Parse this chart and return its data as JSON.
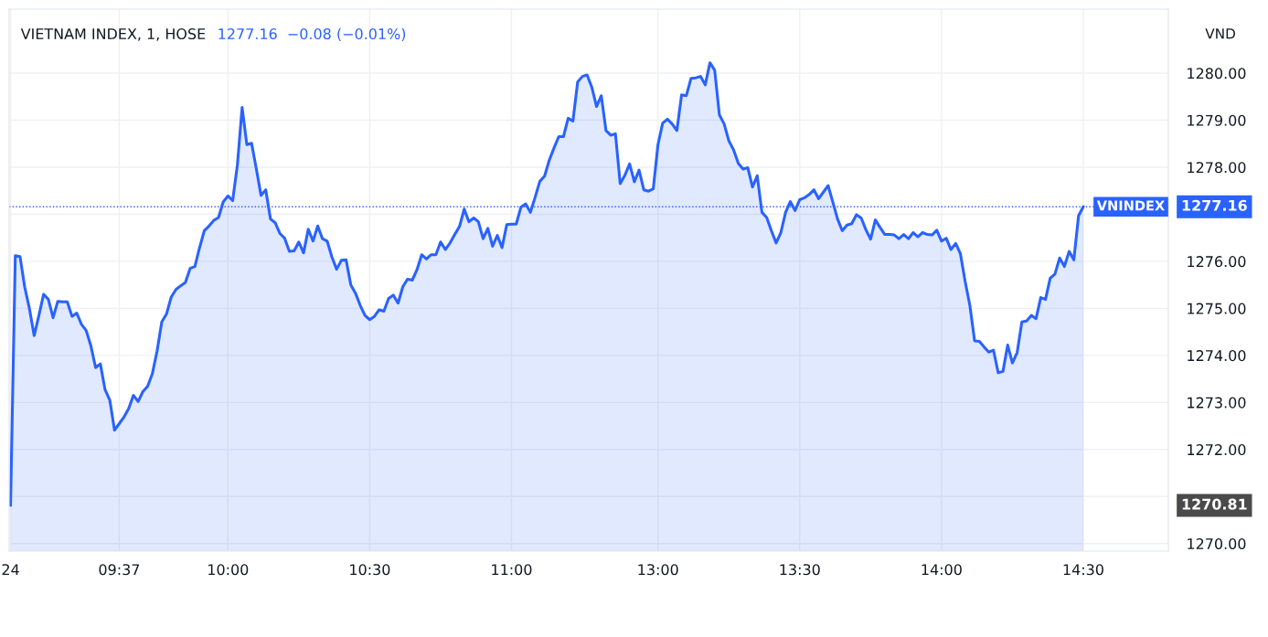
{
  "chart_data": {
    "type": "area",
    "title": "VIETNAM INDEX, 1, HOSE",
    "subtitle": "1277.16  −0.08 (−0.01%)",
    "ylabel": "VND",
    "categories": [
      "24",
      null,
      null,
      null,
      null,
      null,
      null,
      null,
      null,
      null,
      null,
      null,
      null,
      null,
      null,
      null,
      null,
      null,
      null,
      null,
      null,
      null,
      null,
      "09:37",
      null,
      null,
      null,
      null,
      null,
      null,
      null,
      null,
      null,
      null,
      null,
      null,
      null,
      null,
      null,
      null,
      null,
      null,
      null,
      null,
      null,
      null,
      "10:00",
      null,
      null,
      null,
      null,
      null,
      null,
      null,
      null,
      null,
      null,
      null,
      null,
      null,
      null,
      null,
      null,
      null,
      null,
      null,
      null,
      null,
      null,
      null,
      null,
      null,
      null,
      null,
      null,
      null,
      "10:30",
      null,
      null,
      null,
      null,
      null,
      null,
      null,
      null,
      null,
      null,
      null,
      null,
      null,
      null,
      null,
      null,
      null,
      null,
      null,
      null,
      null,
      null,
      null,
      null,
      null,
      null,
      null,
      null,
      null,
      "11:00",
      null,
      null,
      null,
      null,
      null,
      null,
      null,
      null,
      null,
      null,
      null,
      null,
      null,
      null,
      null,
      null,
      null,
      null,
      null,
      null,
      null,
      null,
      null,
      null,
      null,
      null,
      null,
      null,
      null,
      null,
      "13:00",
      null,
      null,
      null,
      null,
      null,
      null,
      null,
      null,
      null,
      null,
      null,
      null,
      null,
      null,
      null,
      null,
      null,
      null,
      null,
      null,
      null,
      null,
      null,
      null,
      null,
      null,
      null,
      null,
      null,
      "13:30",
      null,
      null,
      null,
      null,
      null,
      null,
      null,
      null,
      null,
      null,
      null,
      null,
      null,
      null,
      null,
      null,
      null,
      null,
      null,
      null,
      null,
      null,
      null,
      null,
      null,
      null,
      null,
      null,
      null,
      "14:00",
      null,
      null,
      null,
      null,
      null,
      null,
      null,
      null,
      null,
      null,
      null,
      null,
      null,
      null,
      null,
      null,
      null,
      null,
      null,
      null,
      null,
      null,
      null,
      null,
      null,
      null,
      null,
      null,
      null,
      "14:30"
    ],
    "series": [
      {
        "color": "#2962ff",
        "values": [
          1270.81,
          1276.12,
          1276.1,
          1275.45,
          1274.99,
          1274.42,
          1274.85,
          1275.3,
          1275.19,
          1274.8,
          1275.15,
          1275.14,
          1275.14,
          1274.83,
          1274.9,
          1274.66,
          1274.53,
          1274.2,
          1273.74,
          1273.82,
          1273.27,
          1273.05,
          1272.41,
          1272.55,
          1272.69,
          1272.87,
          1273.15,
          1273.02,
          1273.23,
          1273.34,
          1273.61,
          1274.09,
          1274.71,
          1274.88,
          1275.24,
          1275.4,
          1275.48,
          1275.55,
          1275.85,
          1275.89,
          1276.29,
          1276.65,
          1276.75,
          1276.87,
          1276.93,
          1277.26,
          1277.39,
          1277.29,
          1278.05,
          1279.27,
          1278.48,
          1278.51,
          1277.97,
          1277.4,
          1277.52,
          1276.9,
          1276.82,
          1276.59,
          1276.49,
          1276.21,
          1276.22,
          1276.41,
          1276.18,
          1276.68,
          1276.43,
          1276.75,
          1276.48,
          1276.43,
          1276.09,
          1275.83,
          1276.02,
          1276.03,
          1275.5,
          1275.32,
          1275.06,
          1274.85,
          1274.76,
          1274.83,
          1274.97,
          1274.94,
          1275.21,
          1275.28,
          1275.11,
          1275.46,
          1275.62,
          1275.6,
          1275.82,
          1276.14,
          1276.05,
          1276.14,
          1276.14,
          1276.41,
          1276.25,
          1276.39,
          1276.57,
          1276.74,
          1277.11,
          1276.84,
          1276.92,
          1276.84,
          1276.48,
          1276.7,
          1276.32,
          1276.55,
          1276.29,
          1276.78,
          1276.79,
          1276.79,
          1277.15,
          1277.22,
          1277.04,
          1277.36,
          1277.7,
          1277.81,
          1278.15,
          1278.41,
          1278.65,
          1278.65,
          1279.04,
          1278.98,
          1279.81,
          1279.93,
          1279.96,
          1279.7,
          1279.29,
          1279.52,
          1278.78,
          1278.68,
          1278.71,
          1277.65,
          1277.83,
          1278.07,
          1277.69,
          1277.94,
          1277.52,
          1277.49,
          1277.54,
          1278.48,
          1278.94,
          1279.02,
          1278.92,
          1278.78,
          1279.54,
          1279.52,
          1279.89,
          1279.9,
          1279.93,
          1279.75,
          1280.22,
          1280.06,
          1279.11,
          1278.92,
          1278.56,
          1278.37,
          1278.08,
          1277.96,
          1277.99,
          1277.58,
          1277.82,
          1277.04,
          1276.93,
          1276.65,
          1276.39,
          1276.61,
          1277.04,
          1277.27,
          1277.08,
          1277.31,
          1277.35,
          1277.42,
          1277.52,
          1277.33,
          1277.47,
          1277.61,
          1277.26,
          1276.9,
          1276.65,
          1276.77,
          1276.8,
          1276.99,
          1276.92,
          1276.67,
          1276.47,
          1276.88,
          1276.72,
          1276.57,
          1276.57,
          1276.56,
          1276.48,
          1276.57,
          1276.48,
          1276.61,
          1276.52,
          1276.61,
          1276.57,
          1276.56,
          1276.66,
          1276.43,
          1276.49,
          1276.25,
          1276.38,
          1276.16,
          1275.57,
          1275.06,
          1274.31,
          1274.3,
          1274.18,
          1274.07,
          1274.11,
          1273.63,
          1273.66,
          1274.22,
          1273.84,
          1274.06,
          1274.71,
          1274.73,
          1274.85,
          1274.78,
          1275.23,
          1275.19,
          1275.64,
          1275.73,
          1276.07,
          1275.89,
          1276.21,
          1276.03,
          1276.97,
          1277.16
        ]
      }
    ],
    "ylim": [
      1269.84,
      1281.36
    ],
    "yticks": [
      {
        "value": 1270,
        "label": "1270.00"
      },
      {
        "value": 1271,
        "label": null
      },
      {
        "value": 1272,
        "label": "1272.00"
      },
      {
        "value": 1273,
        "label": "1273.00"
      },
      {
        "value": 1274,
        "label": "1274.00"
      },
      {
        "value": 1275,
        "label": "1275.00"
      },
      {
        "value": 1276,
        "label": "1276.00"
      },
      {
        "value": 1277,
        "label": null
      },
      {
        "value": 1278,
        "label": "1278.00"
      },
      {
        "value": 1279,
        "label": "1279.00"
      },
      {
        "value": 1280,
        "label": "1280.00"
      }
    ],
    "grid": true,
    "ref_lines": [
      {
        "axis": "y",
        "value": 1277.16,
        "label": "VNINDEX",
        "color": "#2962ff",
        "line_style": "dotted"
      }
    ],
    "annotations": [
      "1277.16",
      "1270.81"
    ]
  }
}
